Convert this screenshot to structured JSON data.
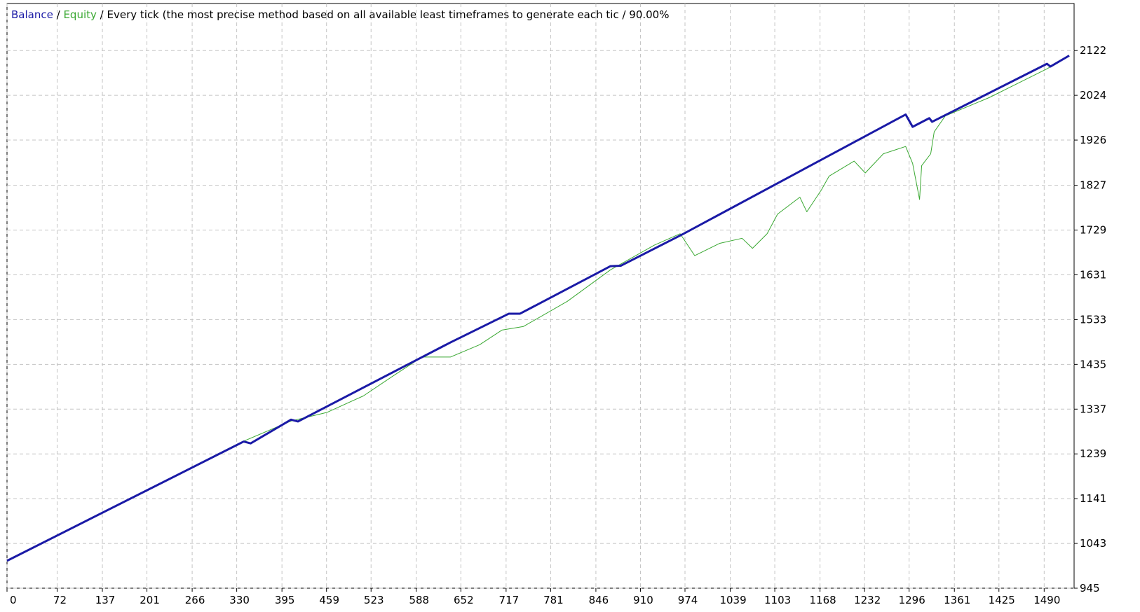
{
  "chart_data": {
    "type": "line",
    "legend_separator": "/",
    "subtitle": "/ Every tick (the most precise method based on all available least timeframes to generate each tic / 90.00%",
    "grid": true,
    "xlim": [
      0,
      1533
    ],
    "ylim": [
      945,
      2225
    ],
    "xticks": [
      0,
      72,
      137,
      201,
      266,
      330,
      395,
      459,
      523,
      588,
      652,
      717,
      781,
      846,
      910,
      974,
      1039,
      1103,
      1168,
      1232,
      1296,
      1361,
      1425,
      1490
    ],
    "yticks": [
      945,
      1043,
      1141,
      1239,
      1337,
      1435,
      1533,
      1631,
      1729,
      1827,
      1926,
      2024,
      2122
    ],
    "series": [
      {
        "name": "Balance",
        "color": "#1a1aa6",
        "width": 3,
        "x": [
          0,
          340,
          350,
          408,
          418,
          637,
          721,
          737,
          867,
          882,
          972,
          1291,
          1301,
          1325,
          1329,
          1494,
          1499,
          1526
        ],
        "values": [
          1005,
          1266,
          1262,
          1314,
          1310,
          1483,
          1546,
          1546,
          1650,
          1651,
          1721,
          1982,
          1955,
          1974,
          1966,
          2093,
          2087,
          2111
        ]
      },
      {
        "name": "Equity",
        "color": "#3aa832",
        "width": 1,
        "x": [
          0,
          334,
          408,
          460,
          512,
          554,
          596,
          637,
          679,
          711,
          742,
          805,
          867,
          930,
          967,
          988,
          1024,
          1056,
          1071,
          1092,
          1107,
          1139,
          1149,
          1170,
          1181,
          1217,
          1233,
          1259,
          1291,
          1301,
          1311,
          1314,
          1327,
          1332,
          1348,
          1411,
          1494,
          1526
        ],
        "values": [
          1005,
          1263,
          1311,
          1330,
          1366,
          1409,
          1451,
          1451,
          1478,
          1510,
          1518,
          1573,
          1642,
          1696,
          1721,
          1673,
          1700,
          1711,
          1689,
          1721,
          1764,
          1801,
          1769,
          1817,
          1847,
          1880,
          1854,
          1896,
          1912,
          1875,
          1796,
          1870,
          1896,
          1944,
          1979,
          2019,
          2082,
          2111
        ]
      }
    ]
  }
}
